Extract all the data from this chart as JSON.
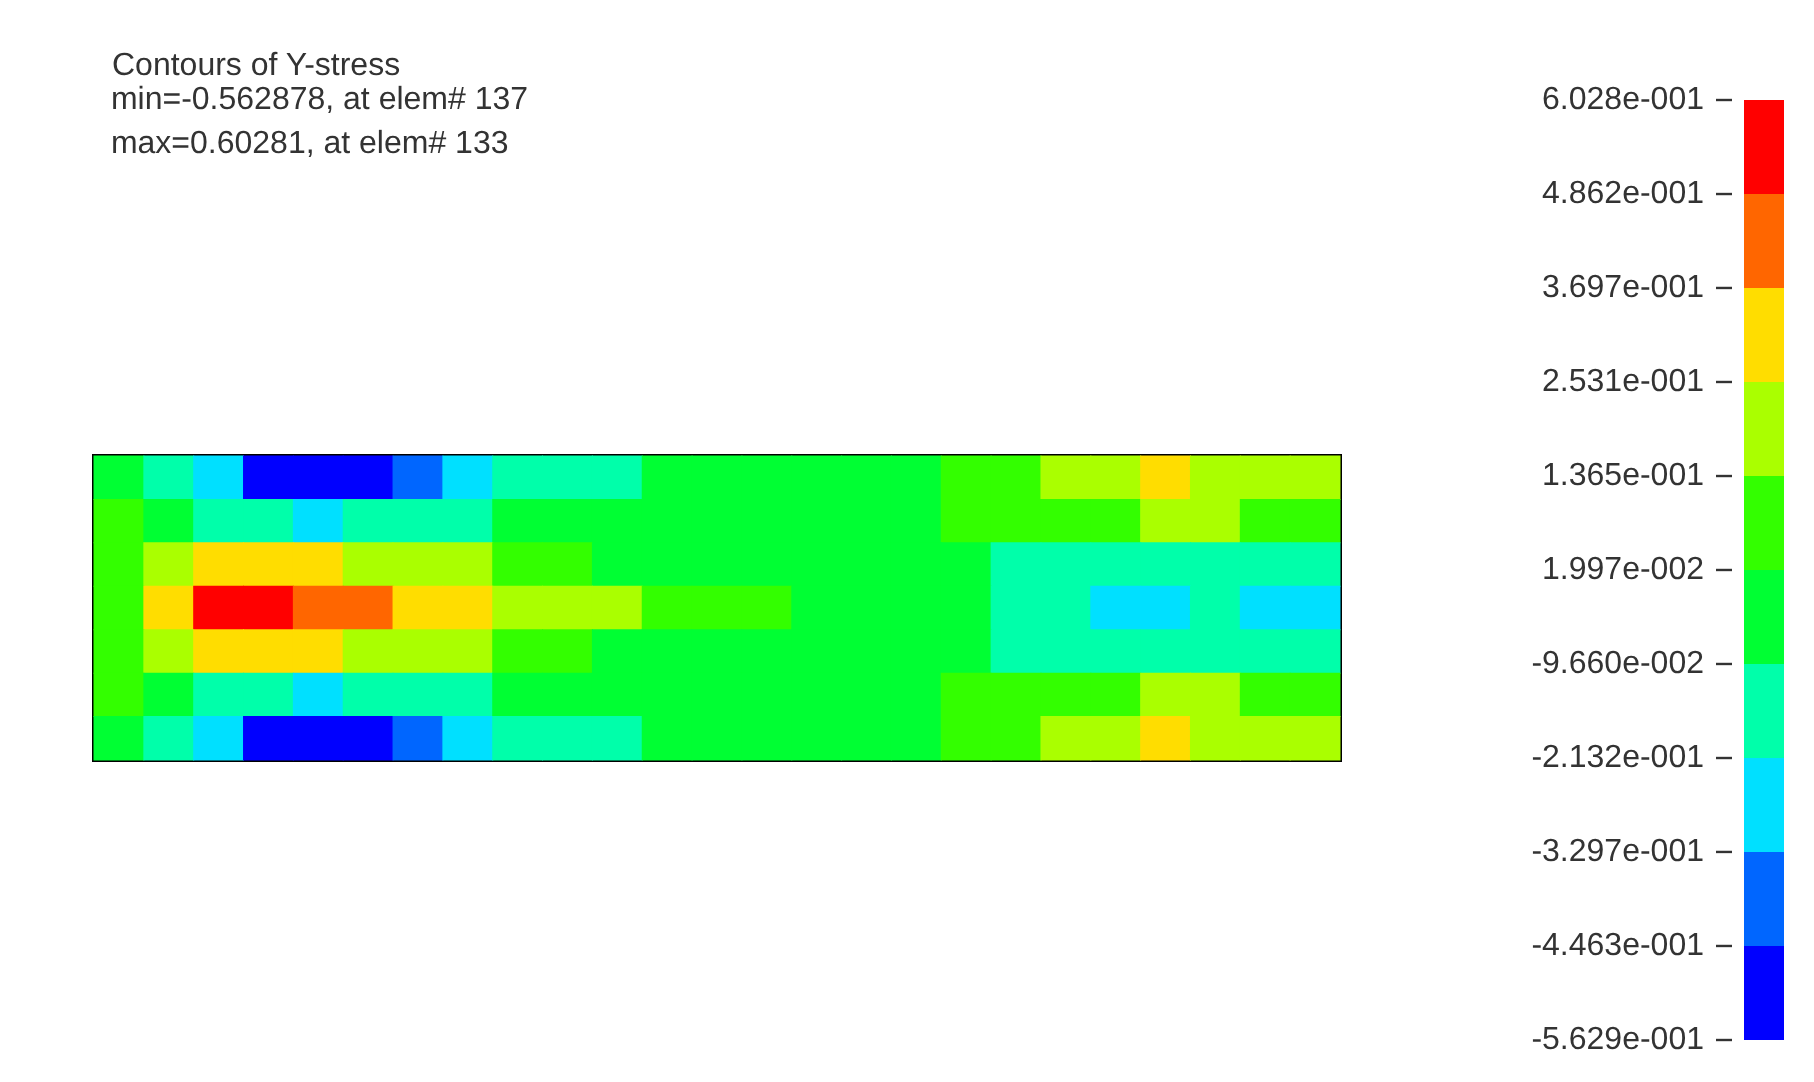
{
  "chart_data": {
    "type": "heatmap",
    "title": "Contours of Y-stress",
    "annotations": [
      " min=-0.562878, at elem# 137",
      " max=0.60281, at elem# 133"
    ],
    "categories": [
      null,
      null,
      null,
      null,
      null,
      null,
      null,
      null,
      null,
      null,
      null,
      null,
      null,
      null,
      null,
      null,
      null,
      null,
      null,
      null,
      null,
      null,
      null,
      null,
      null
    ],
    "y_categories": [
      null,
      null,
      null,
      null,
      null,
      null,
      null
    ],
    "cells": [
      [
        0.0,
        -0.15,
        -0.3,
        -0.45,
        -0.5,
        -0.45,
        -0.35,
        -0.25,
        -0.2,
        -0.15,
        -0.1,
        -0.05,
        0.0,
        0.0,
        0.0,
        0.0,
        0.0,
        0.05,
        0.1,
        0.15,
        0.2,
        0.28,
        0.25,
        0.2,
        0.2
      ],
      [
        0.05,
        -0.05,
        -0.15,
        -0.2,
        -0.25,
        -0.2,
        -0.15,
        -0.12,
        -0.08,
        -0.05,
        0.0,
        0.0,
        0.0,
        0.0,
        0.0,
        0.0,
        0.0,
        0.03,
        0.08,
        0.1,
        0.12,
        0.15,
        0.15,
        0.12,
        0.1
      ],
      [
        0.1,
        0.2,
        0.3,
        0.32,
        0.3,
        0.25,
        0.2,
        0.15,
        0.1,
        0.05,
        0.0,
        0.0,
        0.0,
        0.0,
        0.0,
        0.0,
        0.0,
        -0.05,
        -0.1,
        -0.12,
        -0.12,
        -0.12,
        -0.12,
        -0.12,
        -0.12
      ],
      [
        0.1,
        0.3,
        0.55,
        0.6,
        0.45,
        0.4,
        0.35,
        0.3,
        0.25,
        0.2,
        0.15,
        0.12,
        0.08,
        0.05,
        0.0,
        0.0,
        0.0,
        -0.05,
        -0.12,
        -0.18,
        -0.22,
        -0.25,
        -0.2,
        -0.22,
        -0.25
      ],
      [
        0.1,
        0.2,
        0.3,
        0.32,
        0.3,
        0.25,
        0.2,
        0.15,
        0.1,
        0.05,
        0.0,
        0.0,
        0.0,
        0.0,
        0.0,
        0.0,
        0.0,
        -0.05,
        -0.1,
        -0.12,
        -0.12,
        -0.12,
        -0.12,
        -0.12,
        -0.12
      ],
      [
        0.05,
        -0.05,
        -0.15,
        -0.2,
        -0.25,
        -0.2,
        -0.15,
        -0.12,
        -0.08,
        -0.05,
        0.0,
        0.0,
        0.0,
        0.0,
        0.0,
        0.0,
        0.0,
        0.03,
        0.08,
        0.1,
        0.12,
        0.15,
        0.15,
        0.12,
        0.1
      ],
      [
        0.0,
        -0.15,
        -0.3,
        -0.45,
        -0.56,
        -0.45,
        -0.35,
        -0.25,
        -0.2,
        -0.15,
        -0.1,
        -0.05,
        0.0,
        0.0,
        0.0,
        0.0,
        0.0,
        0.05,
        0.1,
        0.15,
        0.2,
        0.28,
        0.25,
        0.2,
        0.2
      ]
    ],
    "clim": [
      -0.5629,
      0.6028
    ],
    "cticks": [
      {
        "value": 0.6028,
        "label": "6.028e-001"
      },
      {
        "value": 0.4862,
        "label": "4.862e-001"
      },
      {
        "value": 0.3697,
        "label": "3.697e-001"
      },
      {
        "value": 0.2531,
        "label": "2.531e-001"
      },
      {
        "value": 0.1365,
        "label": "1.365e-001"
      },
      {
        "value": 0.01997,
        "label": "1.997e-002"
      },
      {
        "value": -0.0966,
        "label": "-9.660e-002"
      },
      {
        "value": -0.2132,
        "label": "-2.132e-001"
      },
      {
        "value": -0.3297,
        "label": "-3.297e-001"
      },
      {
        "value": -0.4463,
        "label": "-4.463e-001"
      },
      {
        "value": -0.5629,
        "label": "-5.629e-001"
      }
    ],
    "colors": [
      "#0000ff",
      "#0066ff",
      "#00e0ff",
      "#00ffaa",
      "#00ff33",
      "#33ff00",
      "#aaff00",
      "#ffdd00",
      "#ff6600",
      "#ff0000"
    ],
    "clabel": null
  }
}
